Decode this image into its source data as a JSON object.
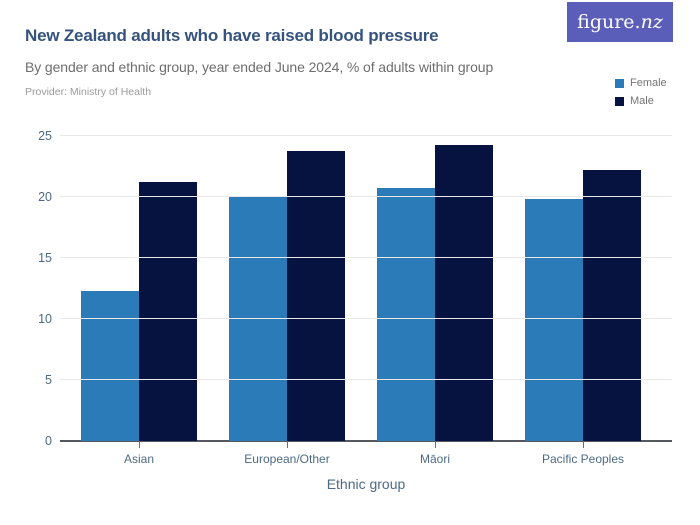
{
  "header": {
    "title": "New Zealand adults who have raised blood pressure",
    "subtitle": "By gender and ethnic group, year ended June 2024, % of adults within group",
    "provider": "Provider: Ministry of Health",
    "logo": {
      "prefix": "figure.",
      "suffix": "nz",
      "bg_color": "#5a5eb8"
    }
  },
  "chart_data": {
    "type": "bar",
    "title": "New Zealand adults who have raised blood pressure",
    "subtitle": "By gender and ethnic group, year ended June 2024, % of adults within group",
    "categories": [
      "Asian",
      "European/Other",
      "Māori",
      "Pacific Peoples"
    ],
    "series": [
      {
        "name": "Female",
        "color": "#2c7bb9",
        "values": [
          12.3,
          20.0,
          20.7,
          19.8
        ]
      },
      {
        "name": "Male",
        "color": "#061341",
        "values": [
          21.2,
          23.8,
          24.3,
          22.2
        ]
      }
    ],
    "xlabel": "Ethnic group",
    "ylabel": "",
    "ylim": [
      0,
      25
    ],
    "yticks": [
      0,
      5,
      10,
      15,
      20,
      25
    ],
    "grid": true,
    "legend_position": "top-right",
    "units": "% of adults within group"
  },
  "colors": {
    "brand_purple": "#5a5eb8",
    "title_navy": "#35537e",
    "axis_text": "#4d6a85",
    "gridline": "#e8e8e8"
  }
}
